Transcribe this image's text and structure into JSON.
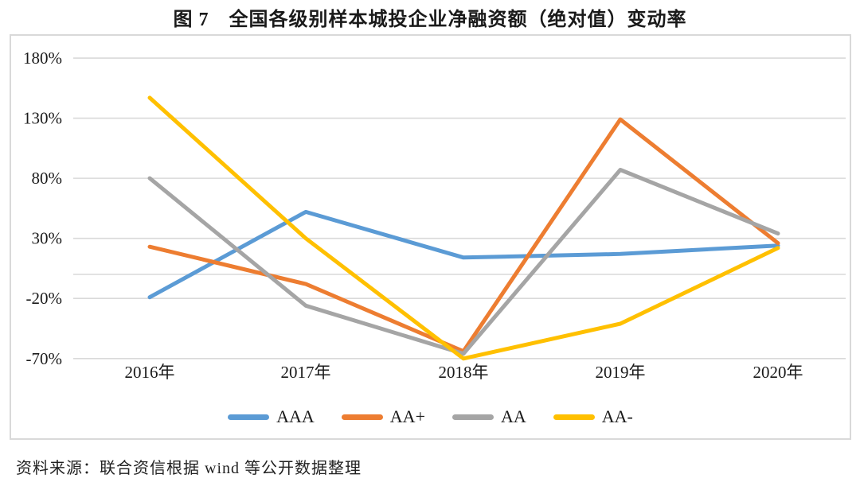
{
  "title": "图 7　全国各级别样本城投企业净融资额（绝对值）变动率",
  "source": "资料来源：联合资信根据 wind 等公开数据整理",
  "colors": {
    "grid": "#d9d9d9",
    "axis_text": "#1a1a1a",
    "chart_border": "#d9d9d9",
    "series_aaa": "#5B9BD5",
    "series_aa_plus": "#ED7D31",
    "series_aa": "#A5A5A5",
    "series_aa_minus": "#FFC000"
  },
  "chart_data": {
    "type": "line",
    "categories": [
      "2016年",
      "2017年",
      "2018年",
      "2019年",
      "2020年"
    ],
    "series": [
      {
        "name": "AAA",
        "color": "#5B9BD5",
        "values": [
          -19,
          52,
          14,
          17,
          24
        ]
      },
      {
        "name": "AA+",
        "color": "#ED7D31",
        "values": [
          23,
          -8,
          -64,
          129,
          26
        ]
      },
      {
        "name": "AA",
        "color": "#A5A5A5",
        "values": [
          80,
          -26,
          -66,
          87,
          34
        ]
      },
      {
        "name": "AA-",
        "color": "#FFC000",
        "values": [
          147,
          30,
          -70,
          -41,
          22
        ]
      }
    ],
    "y_ticks": [
      180,
      130,
      80,
      30,
      -20,
      -70
    ],
    "y_tick_labels": [
      "180%",
      "130%",
      "80%",
      "30%",
      "-20%",
      "-70%"
    ],
    "zero_baseline": 0,
    "ylim": [
      -70,
      180
    ],
    "y_unit": "%",
    "grid": true,
    "legend_position": "bottom"
  }
}
